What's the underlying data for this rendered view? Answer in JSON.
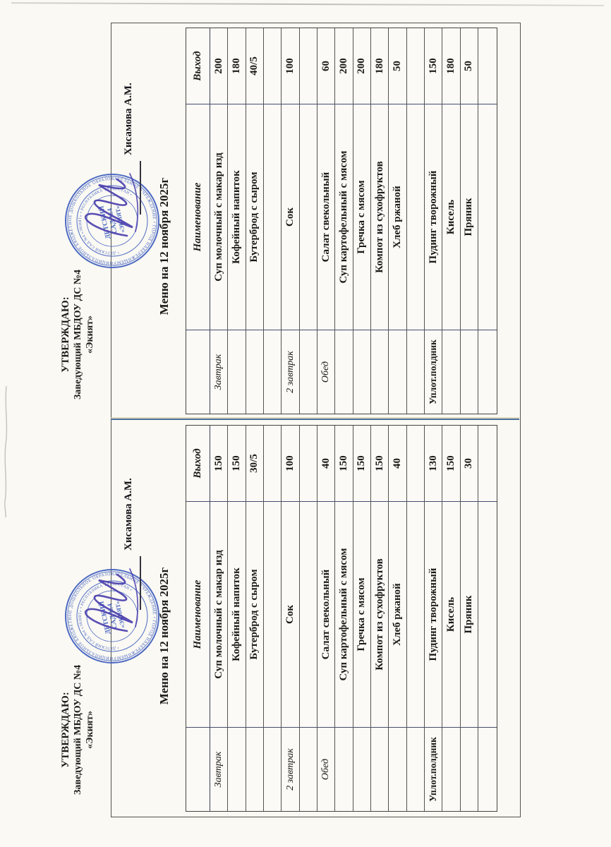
{
  "colors": {
    "paper": "#faf9f3",
    "ink": "#1a1a18",
    "table_line": "#54534d",
    "blue_line": "#4a6fa0",
    "stamp_blue": "#3f5fc0",
    "signature_ink": "#4b3fae"
  },
  "document": {
    "approval": {
      "line1": "УТВЕРЖДАЮ:",
      "line2": "Заведующий МБДОУ ДС №4",
      "line3": "«Экият»"
    },
    "signer_name": "Хисамова А.М.",
    "menu_title": "Меню на 12 ноября 2025г",
    "stamp": {
      "ring_text": "МУНИЦИПАЛЬНОЕ БЮДЖЕТНОЕ ДОШКОЛЬНОЕ ОБРАЗОВАТЕЛЬНОЕ УЧРЕЖДЕНИЕ • ГОРОД НАБЕРЕЖНЫЕ ЧЕЛНЫ •",
      "inner_ring_text": "• ДЕТСКИЙ САД №4 «ЭКИЯТ» • РЕСПУБЛИКА ТАТАРСТАН •",
      "center_line1": "ДЕТСКИЙ",
      "center_line2": "САД №4",
      "center_line3": "«ЭКИЯТ»"
    },
    "table_headers": {
      "name": "Наименование",
      "output": "Выход"
    },
    "menus": [
      {
        "position": "top-of-scan",
        "rows": [
          {
            "category": "Завтрак",
            "name": "Суп молочный с макар изд",
            "output": "200"
          },
          {
            "category": "",
            "name": "Кофейный напиток",
            "output": "180"
          },
          {
            "category": "",
            "name": "Бутерброд с сыром",
            "output": "40/5"
          },
          {
            "category": "",
            "name": "",
            "output": ""
          },
          {
            "category": "2 завтрак",
            "name": "Сок",
            "output": "100"
          },
          {
            "category": "",
            "name": "",
            "output": ""
          },
          {
            "category": "Обед",
            "name": "Салат свекольный",
            "output": "60"
          },
          {
            "category": "",
            "name": "Суп картофельный с мясом",
            "output": "200"
          },
          {
            "category": "",
            "name": "Гречка с мясом",
            "output": "200"
          },
          {
            "category": "",
            "name": "Компот из сухофруктов",
            "output": "180"
          },
          {
            "category": "",
            "name": "Хлеб ржаной",
            "output": "50"
          },
          {
            "category": "",
            "name": "",
            "output": ""
          },
          {
            "category": "Уплот.полдник",
            "name": "Пудинг творожный",
            "output": "150"
          },
          {
            "category": "",
            "name": "Кисель",
            "output": "180"
          },
          {
            "category": "",
            "name": "Пряник",
            "output": "50"
          },
          {
            "category": "",
            "name": "",
            "output": ""
          }
        ]
      },
      {
        "position": "bottom-of-scan",
        "rows": [
          {
            "category": "Завтрак",
            "name": "Суп молочный с макар изд",
            "output": "150"
          },
          {
            "category": "",
            "name": "Кофейный напиток",
            "output": "150"
          },
          {
            "category": "",
            "name": "Бутерброд с сыром",
            "output": "30/5"
          },
          {
            "category": "",
            "name": "",
            "output": ""
          },
          {
            "category": "2 завтрак",
            "name": "Сок",
            "output": "100"
          },
          {
            "category": "",
            "name": "",
            "output": ""
          },
          {
            "category": "Обед",
            "name": "Салат свекольный",
            "output": "40"
          },
          {
            "category": "",
            "name": "Суп картофельный с мясом",
            "output": "150"
          },
          {
            "category": "",
            "name": "Гречка с мясом",
            "output": "150"
          },
          {
            "category": "",
            "name": "Компот из сухофруктов",
            "output": "150"
          },
          {
            "category": "",
            "name": "Хлеб ржаной",
            "output": "40"
          },
          {
            "category": "",
            "name": "",
            "output": ""
          },
          {
            "category": "Уплот.полдник",
            "name": "Пудинг творожный",
            "output": "130"
          },
          {
            "category": "",
            "name": "Кисель",
            "output": "150"
          },
          {
            "category": "",
            "name": "Пряник",
            "output": "30"
          },
          {
            "category": "",
            "name": "",
            "output": ""
          }
        ]
      }
    ]
  }
}
